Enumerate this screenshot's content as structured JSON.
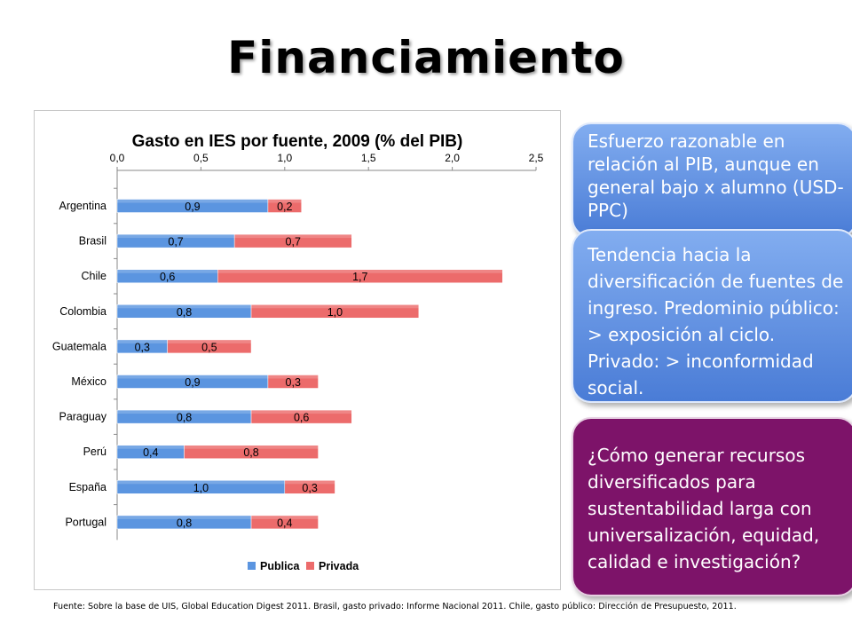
{
  "slide": {
    "title": "Financiamiento",
    "footnote": "Fuente: Sobre la base de UIS, Global Education Digest 2011. Brasil, gasto privado: Informe Nacional 2011. Chile, gasto público:  Dirección de Presupuesto, 2011.",
    "callouts": [
      "Esfuerzo razonable en relación al PIB, aunque en general bajo x alumno (USD-PPC)",
      "Tendencia hacia la diversificación de fuentes de ingreso. Predominio público: > exposición al ciclo. Privado: > inconformidad social.",
      "¿Cómo generar recursos diversificados para sustentabilidad larga con universalización, equidad, calidad e investigación?"
    ]
  },
  "colors": {
    "publica": "#5b95e0",
    "privada": "#ec6b6b",
    "callout_blue": "#5f8fe0",
    "callout_purple": "#7d1369"
  },
  "chart_data": {
    "type": "bar",
    "orientation": "horizontal",
    "stacked": true,
    "title": "Gasto en IES por fuente, 2009 (% del PIB)",
    "categories": [
      "Argentina",
      "Brasil",
      "Chile",
      "Colombia",
      "Guatemala",
      "México",
      "Paraguay",
      "Perú",
      "España",
      "Portugal"
    ],
    "series": [
      {
        "name": "Publica",
        "values": [
          0.9,
          0.7,
          0.6,
          0.8,
          0.3,
          0.9,
          0.8,
          0.4,
          1.0,
          0.8
        ],
        "labels": [
          "0,9",
          "0,7",
          "0,6",
          "0,8",
          "0,3",
          "0,9",
          "0,8",
          "0,4",
          "1,0",
          "0,8"
        ]
      },
      {
        "name": "Privada",
        "values": [
          0.2,
          0.7,
          1.7,
          1.0,
          0.5,
          0.3,
          0.6,
          0.8,
          0.3,
          0.4
        ],
        "labels": [
          "0,2",
          "0,7",
          "1,7",
          "1,0",
          "0,5",
          "0,3",
          "0,6",
          "0,8",
          "0,3",
          "0,4"
        ]
      }
    ],
    "xlim": [
      0,
      2.5
    ],
    "ticks": [
      "0,0",
      "0,5",
      "1,0",
      "1,5",
      "2,0",
      "2,5"
    ],
    "tick_values": [
      0,
      0.5,
      1.0,
      1.5,
      2.0,
      2.5
    ],
    "axis_position": "top",
    "legend_placement": "bottom",
    "grid": false
  }
}
